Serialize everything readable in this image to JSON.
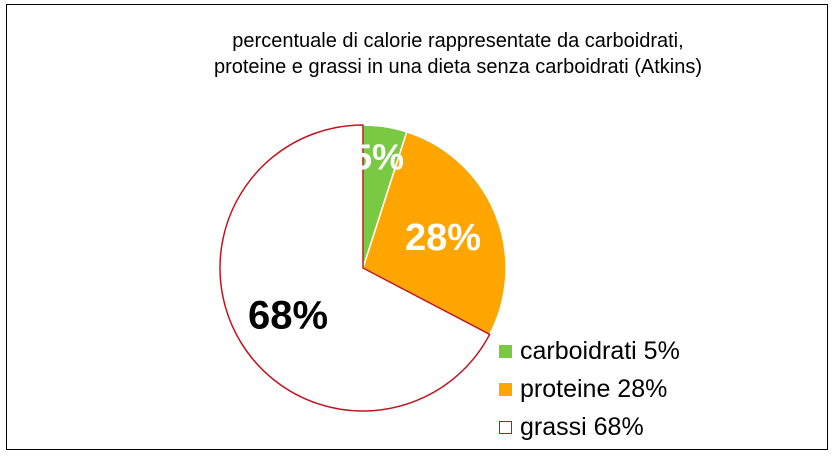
{
  "chart_data": {
    "type": "pie",
    "title": [
      "percentuale di calorie rappresentate da carboidrati,",
      "proteine e grassi in una dieta senza carboidrati (Atkins)"
    ],
    "slices": [
      {
        "name": "carboidrati",
        "value": 5,
        "label": "5%",
        "legend": "carboidrati 5%",
        "color": "#7ac943",
        "stroke": "#ffffff",
        "label_color": "#ffffff"
      },
      {
        "name": "proteine",
        "value": 28,
        "label": "28%",
        "legend": "proteine 28%",
        "color": "#ffa500",
        "stroke": "#ffffff",
        "label_color": "#ffffff"
      },
      {
        "name": "grassi",
        "value": 68,
        "label": "68%",
        "legend": "grassi 68%",
        "color": "#ffffff",
        "stroke": "#c0141e",
        "label_color": "#000000"
      }
    ],
    "start_angle_deg": 0,
    "direction": "clockwise",
    "legend_position": "right"
  }
}
